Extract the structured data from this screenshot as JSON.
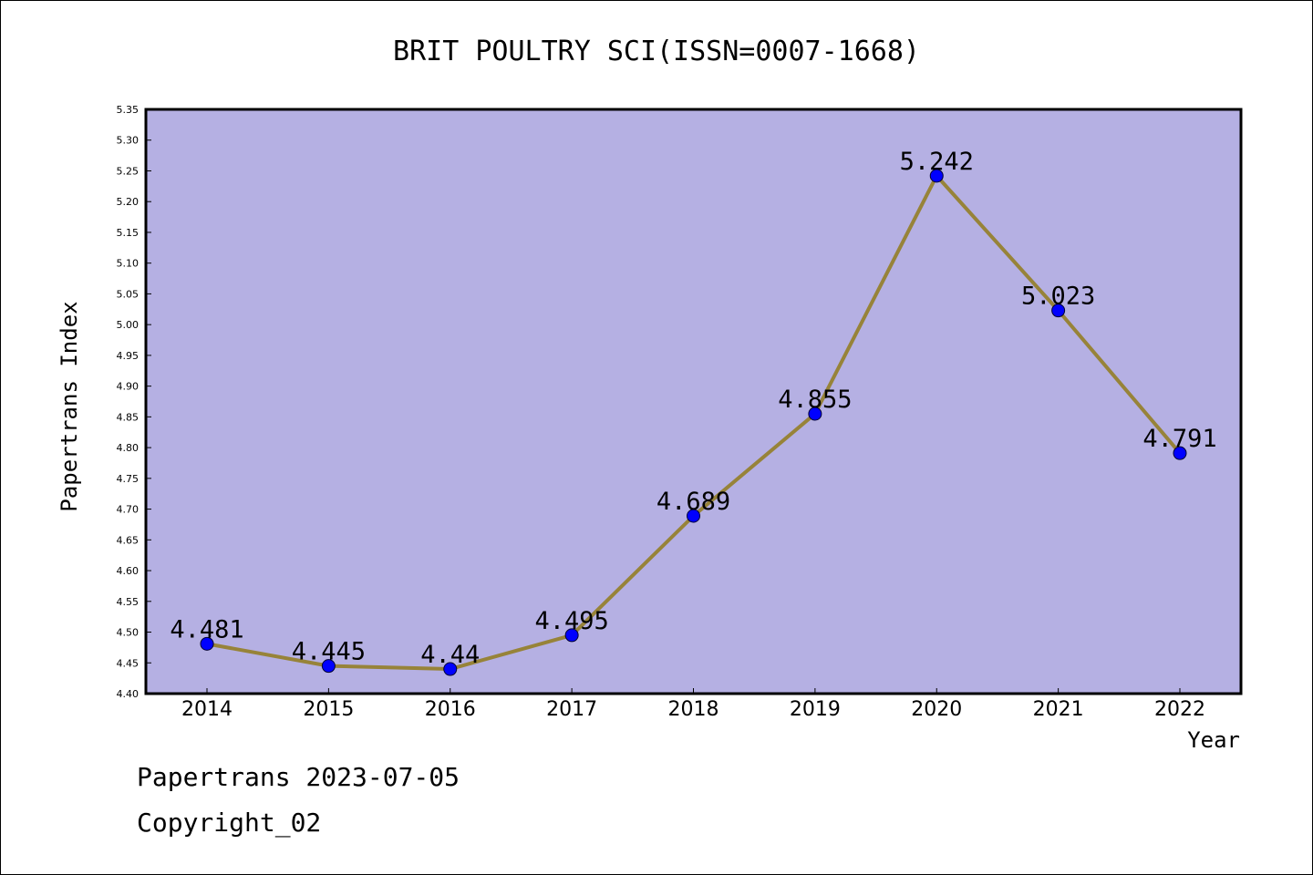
{
  "chart_data": {
    "type": "line",
    "title": "BRIT POULTRY SCI(ISSN=0007-1668)",
    "xlabel": "Year",
    "ylabel": "Papertrans Index",
    "x": [
      "2014",
      "2015",
      "2016",
      "2017",
      "2018",
      "2019",
      "2020",
      "2021",
      "2022"
    ],
    "series": [
      {
        "values": [
          4.481,
          4.445,
          4.44,
          4.495,
          4.689,
          4.855,
          5.242,
          5.023,
          4.791
        ],
        "labels": [
          "4.481",
          "4.445",
          "4.44",
          "4.495",
          "4.689",
          "4.855",
          "5.242",
          "5.023",
          "4.791"
        ]
      }
    ],
    "ylim": [
      4.4,
      5.35
    ],
    "yticks": [
      "4.40",
      "4.45",
      "4.50",
      "4.55",
      "4.60",
      "4.65",
      "4.70",
      "4.75",
      "4.80",
      "4.85",
      "4.90",
      "4.95",
      "5.00",
      "5.05",
      "5.10",
      "5.15",
      "5.20",
      "5.25",
      "5.30",
      "5.35"
    ],
    "grid": false,
    "colors": {
      "plot_background": "#b5b0e3",
      "line": "#978339",
      "marker": "#0000ff"
    }
  },
  "footer": {
    "line1": "Papertrans 2023-07-05",
    "line2": "Copyright_02"
  }
}
